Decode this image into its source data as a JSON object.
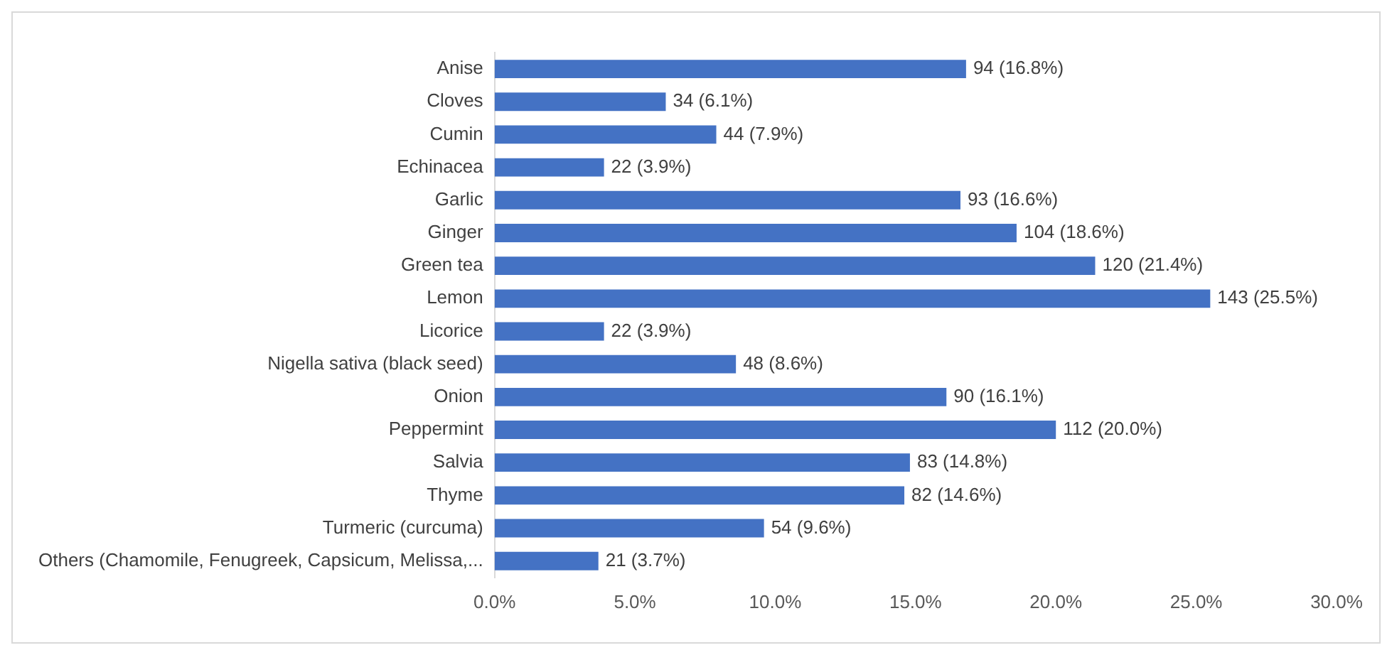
{
  "chart_data": {
    "type": "bar",
    "orientation": "horizontal",
    "categories": [
      "Anise",
      "Cloves",
      "Cumin",
      "Echinacea",
      "Garlic",
      "Ginger",
      "Green tea",
      "Lemon",
      "Licorice",
      "Nigella sativa (black seed)",
      "Onion",
      "Peppermint",
      "Salvia",
      "Thyme",
      "Turmeric (curcuma)",
      "Others (Chamomile, Fenugreek, Capsicum, Melissa,..."
    ],
    "values": [
      16.8,
      6.1,
      7.9,
      3.9,
      16.6,
      18.6,
      21.4,
      25.5,
      3.9,
      8.6,
      16.1,
      20.0,
      14.8,
      14.6,
      9.6,
      3.7
    ],
    "value_labels": [
      "94 (16.8%)",
      "34 (6.1%)",
      "44 (7.9%)",
      "22 (3.9%)",
      "93 (16.6%)",
      "104 (18.6%)",
      "120 (21.4%)",
      "143 (25.5%)",
      "22 (3.9%)",
      "48 (8.6%)",
      "90 (16.1%)",
      "112 (20.0%)",
      "83 (14.8%)",
      "82 (14.6%)",
      "54 (9.6%)",
      "21 (3.7%)"
    ],
    "color": "#4472c4",
    "xlim": [
      0,
      30
    ],
    "xticks": [
      {
        "value": 0,
        "label": "0.0%"
      },
      {
        "value": 5,
        "label": "5.0%"
      },
      {
        "value": 10,
        "label": "10.0%"
      },
      {
        "value": 15,
        "label": "15.0%"
      },
      {
        "value": 20,
        "label": "20.0%"
      },
      {
        "value": 25,
        "label": "25.0%"
      },
      {
        "value": 30,
        "label": "30.0%"
      }
    ],
    "grid": false,
    "legend": false
  }
}
